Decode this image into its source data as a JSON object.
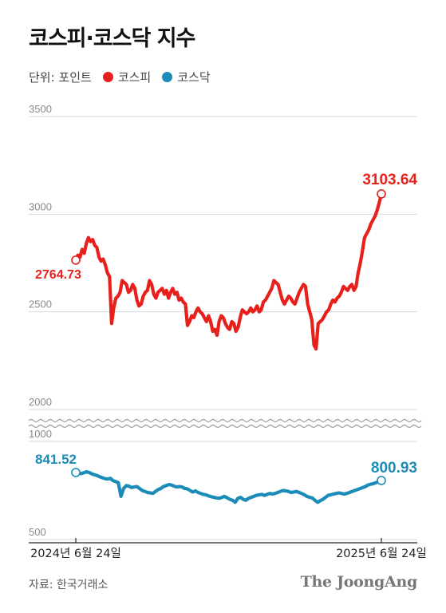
{
  "title": "코스피·코스닥 지수",
  "legend": {
    "unit_label": "단위: 포인트",
    "items": [
      {
        "label": "코스피",
        "color": "#e8201c"
      },
      {
        "label": "코스닥",
        "color": "#1b8cb8"
      }
    ]
  },
  "source": "자료: 한국거래소",
  "brand": "The JoongAng",
  "chart_data": {
    "type": "line",
    "title": "코스피·코스닥 지수",
    "x_range": [
      "2024-06-24",
      "2025-06-24"
    ],
    "x_tick_labels": [
      "2024년 6월 24일",
      "2025년 6월 24일"
    ],
    "axis_break": true,
    "grid": true,
    "panels": [
      {
        "name": "코스피",
        "ylim": [
          2000,
          3500
        ],
        "yticks": [
          3500,
          3000,
          2500,
          2000
        ],
        "color": "#e8201c",
        "start_label": "2764.73",
        "end_label": "3103.64",
        "values": [
          2764.73,
          2790,
          2780,
          2820,
          2800,
          2850,
          2880,
          2860,
          2870,
          2840,
          2830,
          2780,
          2760,
          2770,
          2740,
          2700,
          2680,
          2440,
          2520,
          2570,
          2580,
          2600,
          2660,
          2650,
          2640,
          2600,
          2610,
          2640,
          2620,
          2560,
          2530,
          2540,
          2580,
          2600,
          2610,
          2660,
          2640,
          2590,
          2570,
          2600,
          2610,
          2620,
          2590,
          2610,
          2570,
          2600,
          2620,
          2590,
          2600,
          2560,
          2570,
          2550,
          2540,
          2430,
          2450,
          2480,
          2470,
          2500,
          2520,
          2500,
          2490,
          2470,
          2450,
          2480,
          2450,
          2400,
          2410,
          2380,
          2450,
          2480,
          2470,
          2440,
          2420,
          2410,
          2450,
          2440,
          2400,
          2420,
          2470,
          2510,
          2500,
          2490,
          2500,
          2520,
          2500,
          2510,
          2530,
          2500,
          2510,
          2550,
          2560,
          2580,
          2600,
          2620,
          2660,
          2650,
          2640,
          2600,
          2560,
          2540,
          2560,
          2580,
          2570,
          2550,
          2540,
          2570,
          2600,
          2620,
          2640,
          2630,
          2540,
          2500,
          2460,
          2330,
          2310,
          2440,
          2450,
          2460,
          2480,
          2500,
          2510,
          2540,
          2560,
          2550,
          2570,
          2580,
          2600,
          2630,
          2620,
          2610,
          2630,
          2640,
          2610,
          2630,
          2700,
          2750,
          2810,
          2880,
          2900,
          2920,
          2950,
          2970,
          2990,
          3020,
          3060,
          3103.64
        ]
      },
      {
        "name": "코스닥",
        "ylim": [
          500,
          1000
        ],
        "yticks": [
          1000,
          500
        ],
        "color": "#1b8cb8",
        "start_label": "841.52",
        "end_label": "800.93",
        "values": [
          841.52,
          838,
          836,
          840,
          845,
          842,
          835,
          830,
          826,
          820,
          815,
          810,
          808,
          812,
          800,
          795,
          790,
          720,
          760,
          775,
          772,
          765,
          768,
          770,
          760,
          750,
          745,
          740,
          738,
          735,
          745,
          755,
          760,
          770,
          775,
          780,
          778,
          772,
          768,
          770,
          768,
          760,
          758,
          750,
          742,
          748,
          740,
          735,
          730,
          728,
          722,
          718,
          715,
          712,
          710,
          715,
          720,
          712,
          705,
          700,
          690,
          710,
          715,
          705,
          700,
          710,
          715,
          720,
          725,
          728,
          730,
          725,
          730,
          735,
          732,
          735,
          740,
          745,
          750,
          748,
          745,
          740,
          742,
          745,
          740,
          735,
          728,
          720,
          715,
          712,
          700,
          690,
          698,
          705,
          715,
          725,
          728,
          732,
          735,
          738,
          735,
          732,
          735,
          740,
          745,
          750,
          755,
          760,
          765,
          770,
          778,
          782,
          785,
          790,
          795,
          800.93
        ]
      }
    ]
  }
}
